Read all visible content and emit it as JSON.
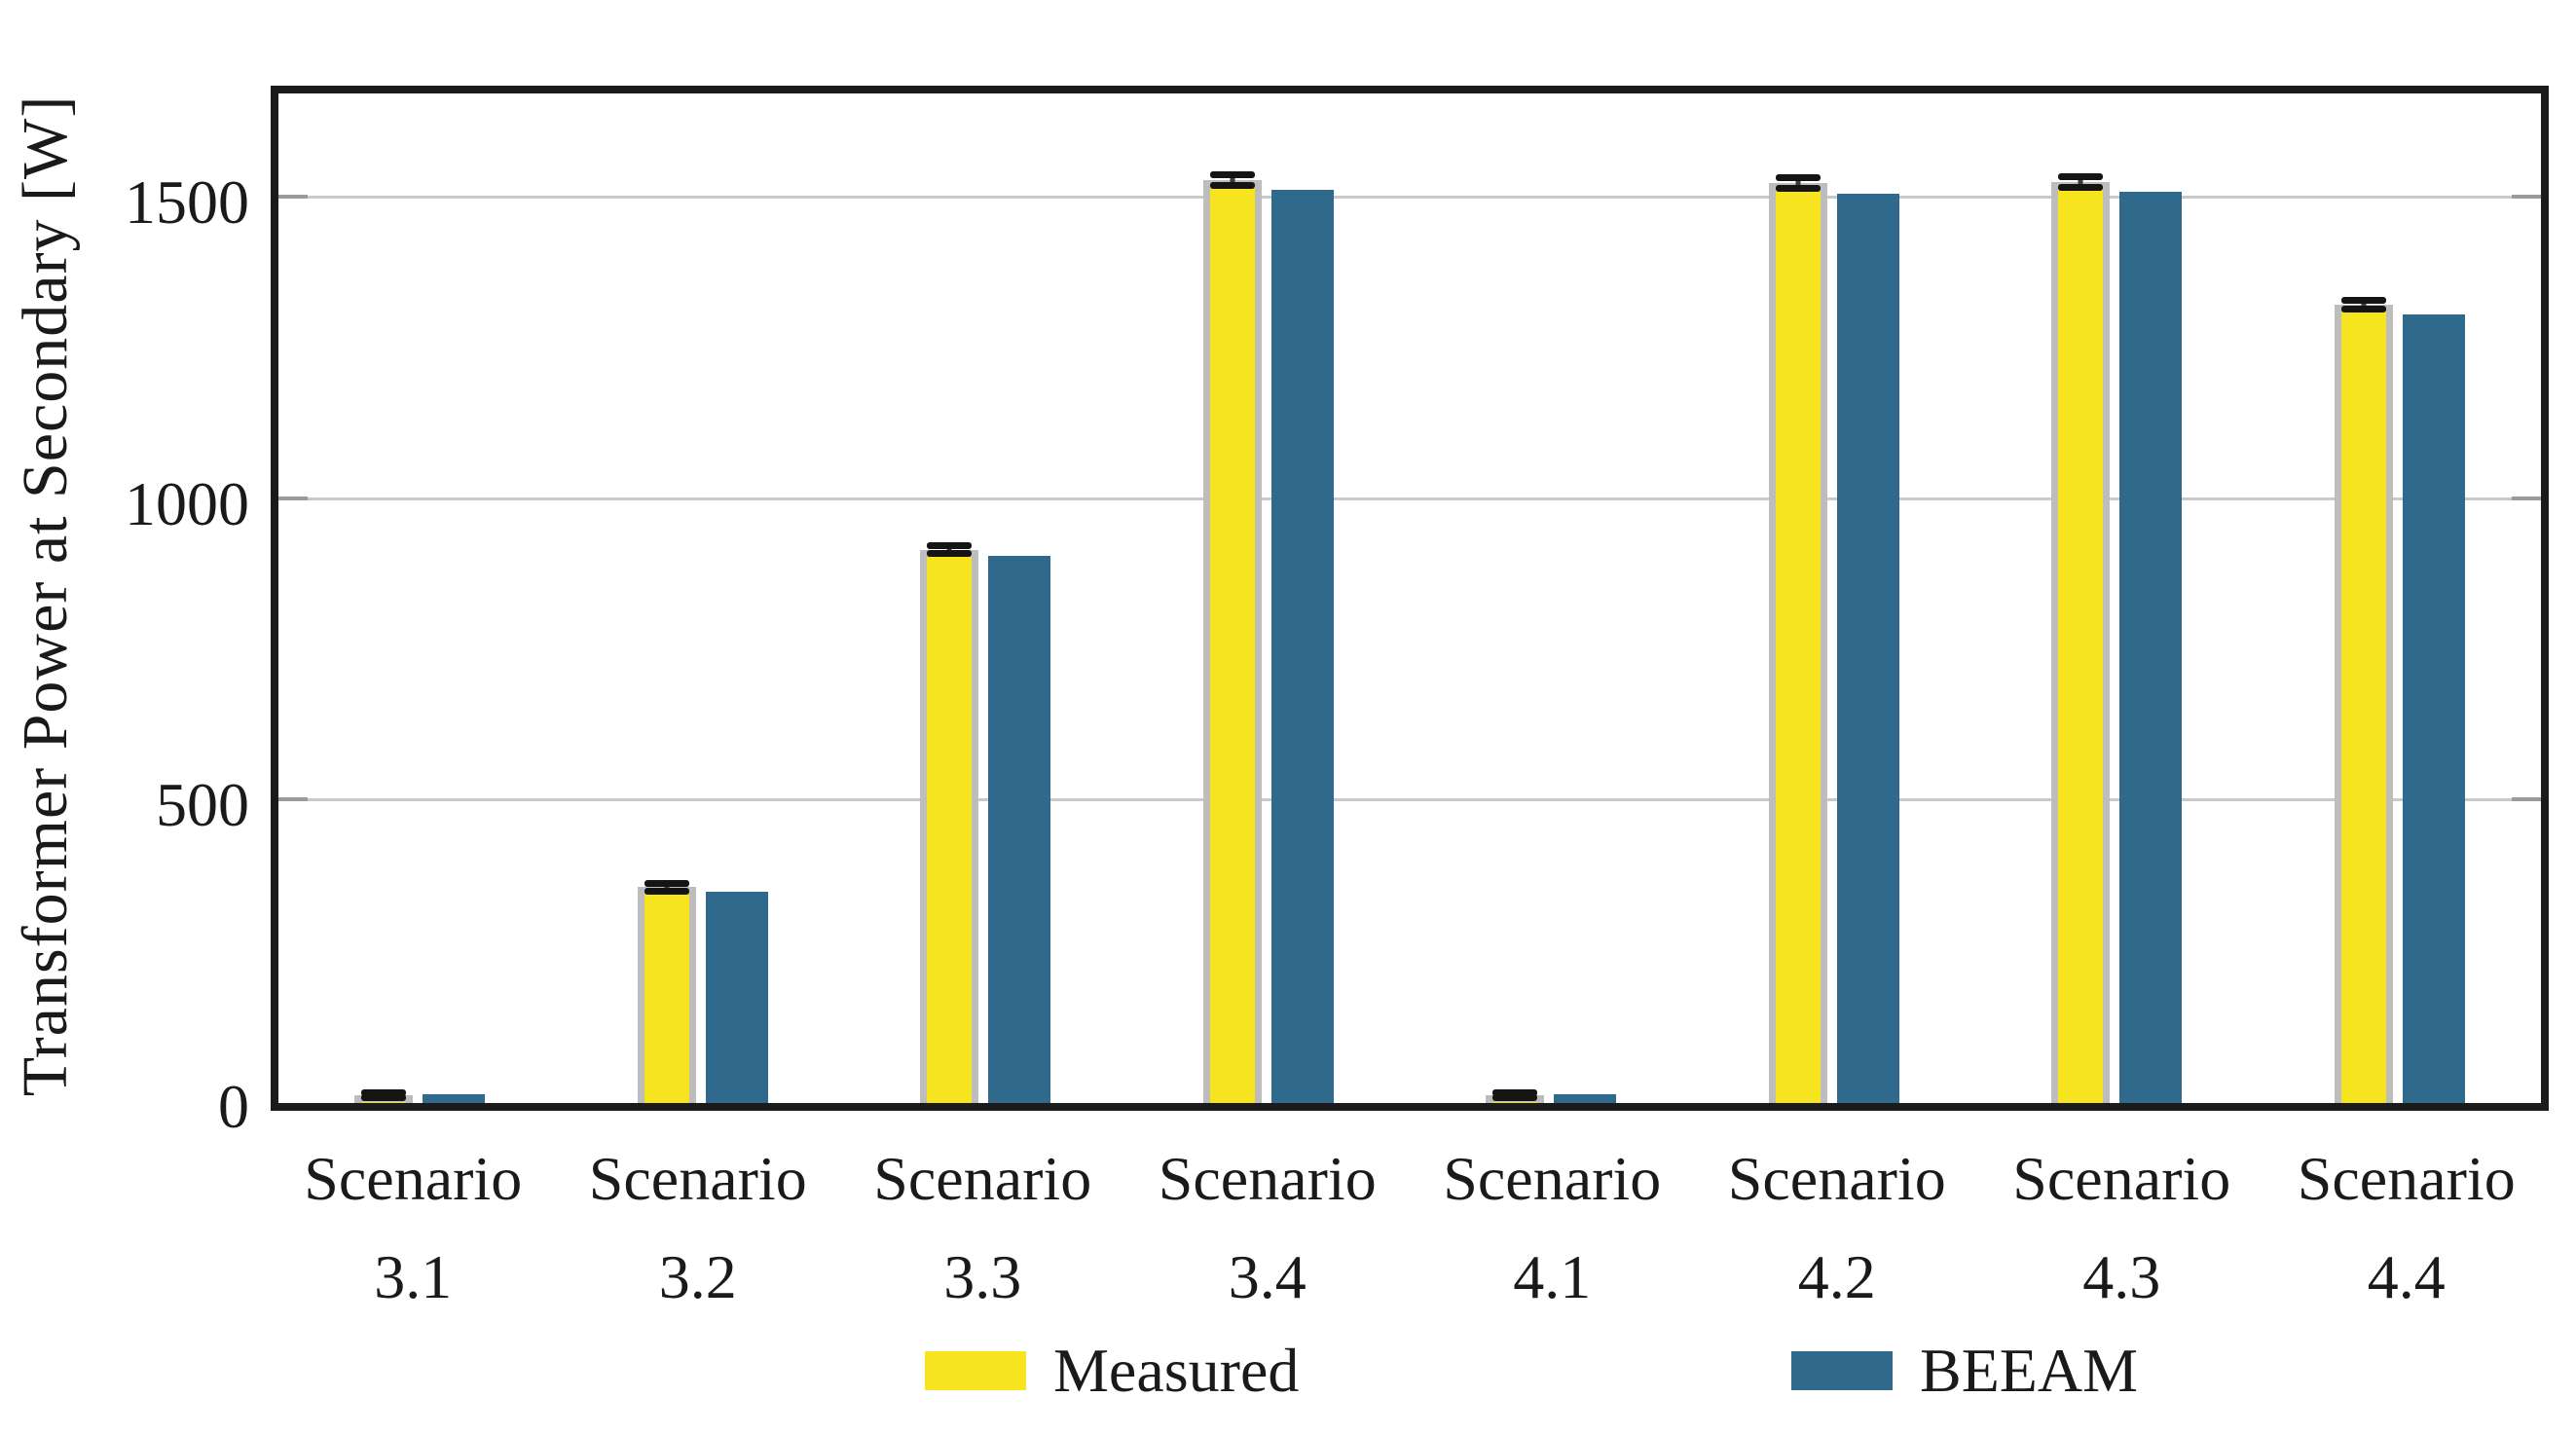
{
  "figure": {
    "kind": "grouped bar chart with error bars"
  },
  "colors": {
    "measured_fill": "#f6e41f",
    "measured_edge": "#bdbdbd",
    "beeam_fill": "#2f6a8d",
    "axis": "#1b1b1b",
    "gridline": "#c9c9c9",
    "error_bar": "#141414",
    "text": "#1a1a1a"
  },
  "chart_data": {
    "type": "bar",
    "title": "",
    "xlabel": "",
    "ylabel": "Transformer Power at Secondary [W]",
    "categories": [
      "Scenario 3.1",
      "Scenario 3.2",
      "Scenario 3.3",
      "Scenario 3.4",
      "Scenario 4.1",
      "Scenario 4.2",
      "Scenario 4.3",
      "Scenario 4.4"
    ],
    "series": [
      {
        "name": "Measured",
        "color": "#f6e41f",
        "edge_color": "#bdbdbd",
        "values": [
          10,
          358,
          918,
          1531,
          10,
          1527,
          1528,
          1325
        ],
        "error_plus_minus": [
          4,
          6,
          6,
          9,
          4,
          9,
          9,
          7
        ]
      },
      {
        "name": "BEEAM",
        "color": "#2f6a8d",
        "values": [
          14,
          350,
          907,
          1515,
          14,
          1509,
          1512,
          1308
        ]
      }
    ],
    "yticks": [
      0,
      500,
      1000,
      1500
    ],
    "ylim": [
      0,
      1675
    ],
    "grid": true,
    "legend_position": "bottom"
  },
  "legend": {
    "measured_label": "Measured",
    "beeam_label": "BEEAM"
  }
}
